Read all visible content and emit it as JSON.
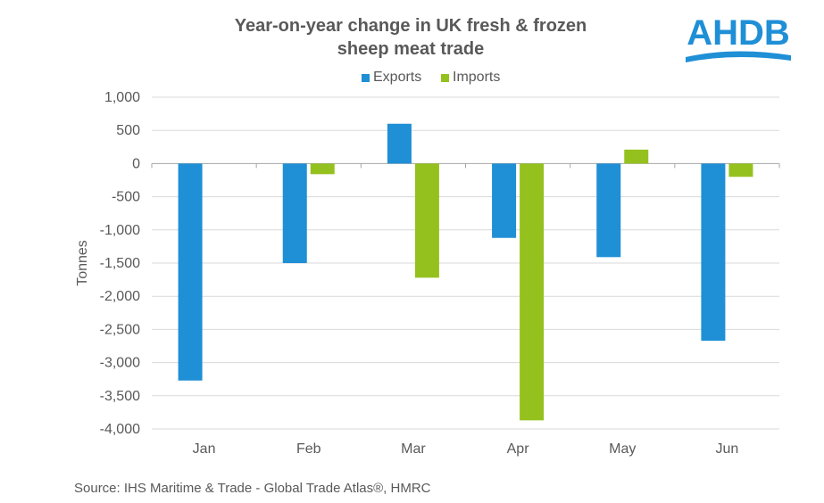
{
  "chart_data": {
    "type": "bar",
    "title_lines": [
      "Year-on-year change in UK fresh & frozen",
      "sheep meat trade"
    ],
    "ylabel": "Tonnes",
    "xlabel": "",
    "categories": [
      "Jan",
      "Feb",
      "Mar",
      "Apr",
      "May",
      "Jun"
    ],
    "series": [
      {
        "name": "Exports",
        "color": "#1f8fd6",
        "values": [
          -3270,
          -1500,
          600,
          -1120,
          -1410,
          -2670
        ]
      },
      {
        "name": "Imports",
        "color": "#95c11f",
        "values": [
          0,
          -160,
          -1720,
          -3870,
          210,
          -200
        ]
      }
    ],
    "ylim": [
      -4000,
      1000
    ],
    "yticks": [
      1000,
      500,
      0,
      -500,
      -1000,
      -1500,
      -2000,
      -2500,
      -3000,
      -3500,
      -4000
    ],
    "ytick_labels": [
      "1,000",
      "500",
      "0",
      "-500",
      "-1,000",
      "-1,500",
      "-2,000",
      "-2,500",
      "-3,000",
      "-3,500",
      "-4,000"
    ],
    "grid": true,
    "legend_position": "top-center"
  },
  "logo": {
    "text": "AHDB",
    "color": "#1f8fd6",
    "icon": "ahdb-logo"
  },
  "source": "Source: IHS Maritime & Trade - Global Trade Atlas®, HMRC"
}
